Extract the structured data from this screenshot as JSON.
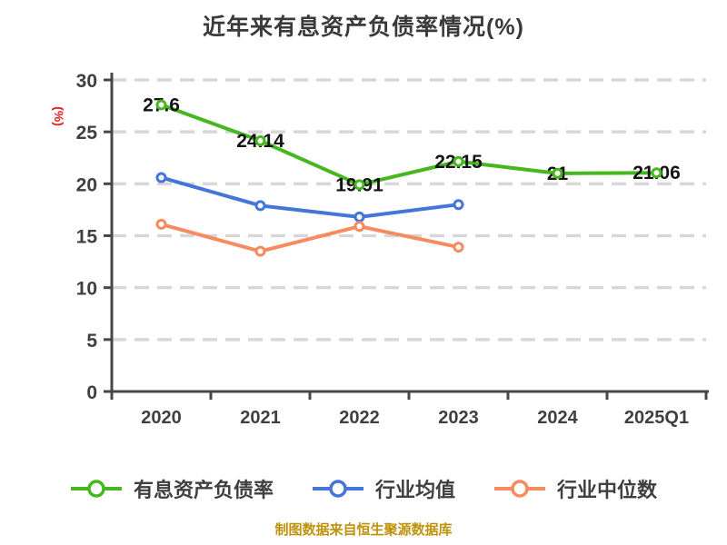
{
  "footer": "制图数据来自恒生聚源数据库",
  "colors": {
    "background": "#ffffff",
    "title": "#3a3a3a",
    "axis": "#474747",
    "grid": "#d7d7d7",
    "tick_label": "#3f3f3f",
    "data_label": "#141414",
    "ylabel": "#e02020",
    "footer": "#bf9208"
  },
  "chart_data": {
    "type": "line",
    "title": "近年来有息资产负债率情况(%)",
    "ylabel": "(%)",
    "xlabel": "",
    "categories": [
      "2020",
      "2021",
      "2022",
      "2023",
      "2024",
      "2025Q1"
    ],
    "ylim": [
      0,
      30
    ],
    "ytick_step": 5,
    "yticks": [
      0,
      5,
      10,
      15,
      20,
      25,
      30
    ],
    "grid": "horizontal-dashed",
    "legend_position": "bottom",
    "series": [
      {
        "name": "有息资产负债率",
        "color": "#47b71f",
        "values": [
          27.6,
          24.14,
          19.91,
          22.15,
          21,
          21.06
        ],
        "point_labels": [
          "27.6",
          "24.14",
          "19.91",
          "22.15",
          "21",
          "21.06"
        ]
      },
      {
        "name": "行业均值",
        "color": "#4475d8",
        "values": [
          20.6,
          17.9,
          16.8,
          18.0,
          null,
          null
        ]
      },
      {
        "name": "行业中位数",
        "color": "#f68b5f",
        "values": [
          16.1,
          13.5,
          15.9,
          13.9,
          null,
          null
        ]
      }
    ]
  }
}
